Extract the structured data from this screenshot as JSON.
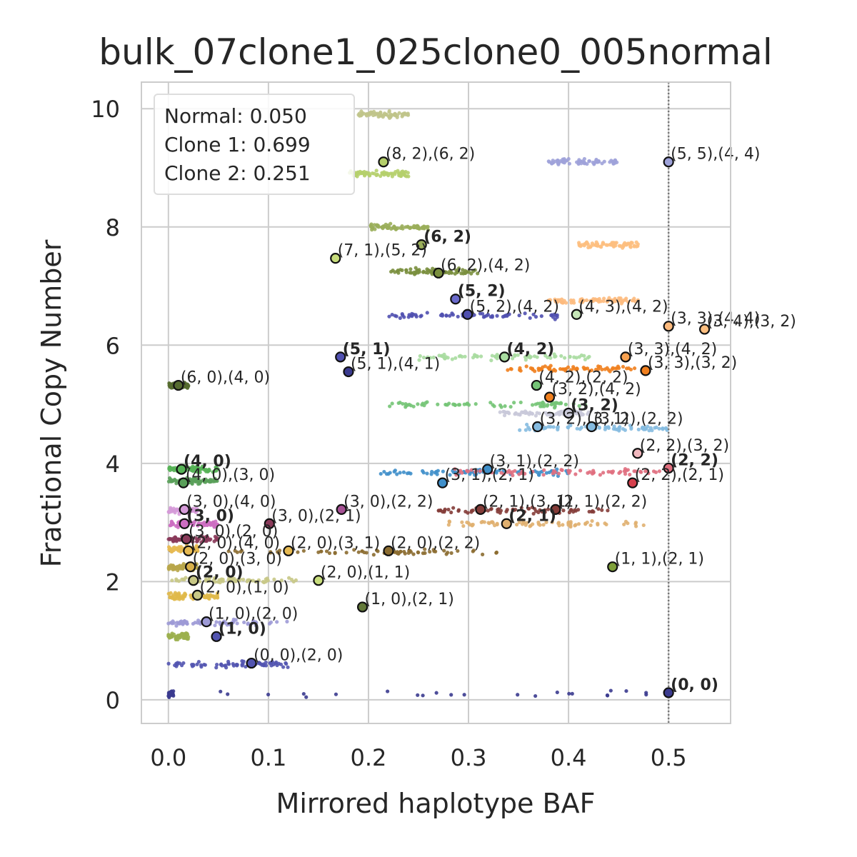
{
  "chart_data": {
    "type": "scatter",
    "title": "bulk_07clone1_025clone0_005normal",
    "xlabel": "Mirrored haplotype BAF",
    "ylabel": "Fractional Copy Number",
    "xlim": [
      -0.027,
      0.562
    ],
    "ylim": [
      -0.4,
      10.45
    ],
    "xticks": [
      0.0,
      0.1,
      0.2,
      0.3,
      0.4,
      0.5
    ],
    "xtick_labels": [
      "0.0",
      "0.1",
      "0.2",
      "0.3",
      "0.4",
      "0.5"
    ],
    "yticks": [
      0,
      2,
      4,
      6,
      8,
      10
    ],
    "ytick_labels": [
      "0",
      "2",
      "4",
      "6",
      "8",
      "10"
    ],
    "grid": true,
    "vline": {
      "x": 0.5,
      "style": "dotted",
      "color": "#777777"
    },
    "legend": {
      "placement": "top-left",
      "lines": [
        "Normal: 0.050",
        "Clone 1: 0.699",
        "Clone 2: 0.251"
      ]
    },
    "clusters": [
      {
        "x": [
          0.0,
          0.5
        ],
        "y": 0.1,
        "dense": [
          0.0,
          0.005
        ],
        "color": "#3b3b8f"
      },
      {
        "x": [
          0.0,
          0.12
        ],
        "y": 0.6,
        "color": "#5254b0"
      },
      {
        "x": [
          0.0,
          0.02
        ],
        "y": 1.08,
        "color": "#9cb04f"
      },
      {
        "x": [
          0.0,
          0.12
        ],
        "y": 1.3,
        "dense": [
          0.0,
          0.07
        ],
        "color": "#9d9ad6"
      },
      {
        "x": [
          0.0,
          0.05
        ],
        "y": 1.75,
        "color": "#e0b94a"
      },
      {
        "x": [
          0.0,
          0.14
        ],
        "y": 2.02,
        "dense": [
          0.0,
          0.1
        ],
        "color": "#c8c886"
      },
      {
        "x": [
          0.0,
          0.03
        ],
        "y": 2.25,
        "color": "#b8a64a"
      },
      {
        "x": [
          0.0,
          0.33
        ],
        "y": 2.5,
        "dense": [
          0.1,
          0.33
        ],
        "color": "#8c6d31"
      },
      {
        "x": [
          0.0,
          0.03
        ],
        "y": 2.55,
        "color": "#e7ba52"
      },
      {
        "x": [
          0.0,
          0.05
        ],
        "y": 2.72,
        "color": "#8a3a5a"
      },
      {
        "x": [
          0.0,
          0.05
        ],
        "y": 2.98,
        "color": "#cd6ec2"
      },
      {
        "x": [
          0.0,
          0.03
        ],
        "y": 3.2,
        "color": "#d59ad8"
      },
      {
        "x": [
          0.28,
          0.48
        ],
        "y": 2.98,
        "color": "#e0b070"
      },
      {
        "x": [
          0.27,
          0.44
        ],
        "y": 3.2,
        "color": "#843c39"
      },
      {
        "x": [
          0.0,
          0.05
        ],
        "y": 3.7,
        "color": "#5aa05a"
      },
      {
        "x": [
          0.0,
          0.05
        ],
        "y": 3.9,
        "color": "#56b356"
      },
      {
        "x": [
          0.21,
          0.4
        ],
        "y": 3.85,
        "color": "#3f8fca"
      },
      {
        "x": [
          0.28,
          0.5
        ],
        "y": 3.85,
        "color": "#e06e7e"
      },
      {
        "x": [
          0.35,
          0.5
        ],
        "y": 4.6,
        "color": "#85bbe0"
      },
      {
        "x": [
          0.33,
          0.42
        ],
        "y": 4.85,
        "color": "#c9c9d9"
      },
      {
        "x": [
          0.33,
          0.48
        ],
        "y": 5.6,
        "color": "#f07f1e"
      },
      {
        "x": [
          0.22,
          0.42
        ],
        "y": 5.0,
        "color": "#74c476"
      },
      {
        "x": [
          0.25,
          0.43
        ],
        "y": 5.8,
        "color": "#a8dca0"
      },
      {
        "x": [
          0.0,
          0.02
        ],
        "y": 5.32,
        "color": "#556b2f"
      },
      {
        "x": [
          0.22,
          0.39
        ],
        "y": 6.5,
        "color": "#5050b0"
      },
      {
        "x": [
          0.38,
          0.47
        ],
        "y": 6.75,
        "color": "#fdba7d"
      },
      {
        "x": [
          0.41,
          0.47
        ],
        "y": 7.7,
        "color": "#fdbf80"
      },
      {
        "x": [
          0.22,
          0.31
        ],
        "y": 7.25,
        "color": "#7a8f3e"
      },
      {
        "x": [
          0.2,
          0.26
        ],
        "y": 8.0,
        "color": "#9aae5a"
      },
      {
        "x": [
          0.18,
          0.24
        ],
        "y": 8.9,
        "color": "#b5cf6b"
      },
      {
        "x": [
          0.19,
          0.24
        ],
        "y": 9.9,
        "color": "#c0c48a"
      },
      {
        "x": [
          0.38,
          0.45
        ],
        "y": 9.1,
        "color": "#9ea2d9"
      }
    ],
    "points": [
      {
        "x": 0.215,
        "y": 9.1,
        "label": "(8, 2),(6, 2)",
        "bold": false,
        "color": "#b5cf6b"
      },
      {
        "x": 0.5,
        "y": 9.1,
        "label": "(5, 5),(4, 4)",
        "bold": false,
        "color": "#9ea2d9"
      },
      {
        "x": 0.253,
        "y": 7.7,
        "label": "(6, 2)",
        "bold": true,
        "color": "#9aae5a"
      },
      {
        "x": 0.167,
        "y": 7.47,
        "label": "(7, 1),(5, 2)",
        "bold": false,
        "color": "#c8dd7c"
      },
      {
        "x": 0.27,
        "y": 7.22,
        "label": "(6, 2),(4, 2)",
        "bold": false,
        "color": "#7a8f3e"
      },
      {
        "x": 0.287,
        "y": 6.78,
        "label": "(5, 2)",
        "bold": true,
        "color": "#6a6acb"
      },
      {
        "x": 0.299,
        "y": 6.52,
        "label": "(5, 2),(4, 2)",
        "bold": false,
        "color": "#5050b0"
      },
      {
        "x": 0.408,
        "y": 6.52,
        "label": "(4, 3),(4, 2)",
        "bold": false,
        "color": "#c6e6b8"
      },
      {
        "x": 0.5,
        "y": 6.32,
        "label": "(3, 3),(4, 4)",
        "bold": false,
        "color": "#fdba7d"
      },
      {
        "x": 0.536,
        "y": 6.27,
        "label": "(3, 4),(3, 2)",
        "bold": false,
        "color": "#fdbf80"
      },
      {
        "x": 0.172,
        "y": 5.8,
        "label": "(5, 1)",
        "bold": true,
        "color": "#5050b0"
      },
      {
        "x": 0.18,
        "y": 5.55,
        "label": "(5, 1),(4, 1)",
        "bold": false,
        "color": "#3b3b8f"
      },
      {
        "x": 0.336,
        "y": 5.8,
        "label": "(4, 2)",
        "bold": true,
        "color": "#a8dca0"
      },
      {
        "x": 0.457,
        "y": 5.8,
        "label": "(3, 3),(4, 2)",
        "bold": false,
        "color": "#f7a150"
      },
      {
        "x": 0.477,
        "y": 5.57,
        "label": "(3, 3),(3, 2)",
        "bold": false,
        "color": "#f07f1e"
      },
      {
        "x": 0.01,
        "y": 5.32,
        "label": "(6, 0),(4, 0)",
        "bold": false,
        "color": "#556b2f"
      },
      {
        "x": 0.368,
        "y": 5.32,
        "label": "(4, 2),(2, 2)",
        "bold": false,
        "color": "#74c476"
      },
      {
        "x": 0.381,
        "y": 5.12,
        "label": "(3, 2),(4, 2)",
        "bold": false,
        "color": "#f07f1e"
      },
      {
        "x": 0.4,
        "y": 4.85,
        "label": "(3, 2)",
        "bold": true,
        "color": "#c9c9d9"
      },
      {
        "x": 0.369,
        "y": 4.62,
        "label": "(3, 2),(3, 1)",
        "bold": false,
        "color": "#85bbe0"
      },
      {
        "x": 0.423,
        "y": 4.62,
        "label": "(3, 2),(2, 2)",
        "bold": false,
        "color": "#85bbe0"
      },
      {
        "x": 0.469,
        "y": 4.17,
        "label": "(2, 2),(3, 2)",
        "bold": false,
        "color": "#f1b8be"
      },
      {
        "x": 0.5,
        "y": 3.92,
        "label": "(2, 2)",
        "bold": true,
        "color": "#e06e7e"
      },
      {
        "x": 0.464,
        "y": 3.67,
        "label": "(2, 2),(2, 1)",
        "bold": false,
        "color": "#d6404d"
      },
      {
        "x": 0.013,
        "y": 3.9,
        "label": "(4, 0)",
        "bold": true,
        "color": "#56b356"
      },
      {
        "x": 0.015,
        "y": 3.67,
        "label": "(4, 0),(3, 0)",
        "bold": false,
        "color": "#5aa05a"
      },
      {
        "x": 0.319,
        "y": 3.9,
        "label": "(3, 1),(2, 2)",
        "bold": false,
        "color": "#3f8fca"
      },
      {
        "x": 0.274,
        "y": 3.67,
        "label": "(3, 1),(2, 1)",
        "bold": false,
        "color": "#3f8fca"
      },
      {
        "x": 0.016,
        "y": 3.22,
        "label": "(3, 0),(4, 0)",
        "bold": false,
        "color": "#d59ad8"
      },
      {
        "x": 0.173,
        "y": 3.22,
        "label": "(3, 0),(2, 2)",
        "bold": false,
        "color": "#a55194"
      },
      {
        "x": 0.312,
        "y": 3.22,
        "label": "(2, 1),(3, 1)",
        "bold": false,
        "color": "#843c39"
      },
      {
        "x": 0.387,
        "y": 3.22,
        "label": "(2, 1),(2, 2)",
        "bold": false,
        "color": "#843c39"
      },
      {
        "x": 0.016,
        "y": 2.98,
        "label": "(3, 0)",
        "bold": true,
        "color": "#cd6ec2"
      },
      {
        "x": 0.101,
        "y": 2.98,
        "label": "(3, 0),(2, 1)",
        "bold": false,
        "color": "#8a3a5a"
      },
      {
        "x": 0.338,
        "y": 2.98,
        "label": "(2, 1)",
        "bold": true,
        "color": "#e0b070"
      },
      {
        "x": 0.018,
        "y": 2.72,
        "label": "(3, 0),(2, 0)",
        "bold": false,
        "color": "#8a3a5a"
      },
      {
        "x": 0.02,
        "y": 2.52,
        "label": "(2, 0),(4, 0)",
        "bold": false,
        "color": "#e7ba52"
      },
      {
        "x": 0.12,
        "y": 2.52,
        "label": "(2, 0),(3, 1)",
        "bold": false,
        "color": "#e7ba52"
      },
      {
        "x": 0.22,
        "y": 2.52,
        "label": "(2, 0),(2, 2)",
        "bold": false,
        "color": "#8c6d31"
      },
      {
        "x": 0.022,
        "y": 2.25,
        "label": "(2, 0),(3, 0)",
        "bold": false,
        "color": "#d8b04a"
      },
      {
        "x": 0.444,
        "y": 2.25,
        "label": "(1, 1),(2, 1)",
        "bold": false,
        "color": "#7fa03a"
      },
      {
        "x": 0.025,
        "y": 2.02,
        "label": "(2, 0)",
        "bold": true,
        "color": "#c8c886"
      },
      {
        "x": 0.15,
        "y": 2.02,
        "label": "(2, 0),(1, 1)",
        "bold": false,
        "color": "#c8dd7c"
      },
      {
        "x": 0.029,
        "y": 1.77,
        "label": "(2, 0),(1, 0)",
        "bold": false,
        "color": "#c8c886"
      },
      {
        "x": 0.194,
        "y": 1.57,
        "label": "(1, 0),(2, 1)",
        "bold": false,
        "color": "#637939"
      },
      {
        "x": 0.038,
        "y": 1.32,
        "label": "(1, 0),(2, 0)",
        "bold": false,
        "color": "#9d9ad6"
      },
      {
        "x": 0.048,
        "y": 1.07,
        "label": "(1, 0)",
        "bold": true,
        "color": "#5254b0"
      },
      {
        "x": 0.083,
        "y": 0.62,
        "label": "(0, 0),(2, 0)",
        "bold": false,
        "color": "#5254b0"
      },
      {
        "x": 0.5,
        "y": 0.12,
        "label": "(0, 0)",
        "bold": true,
        "color": "#3b3b8f"
      }
    ]
  }
}
